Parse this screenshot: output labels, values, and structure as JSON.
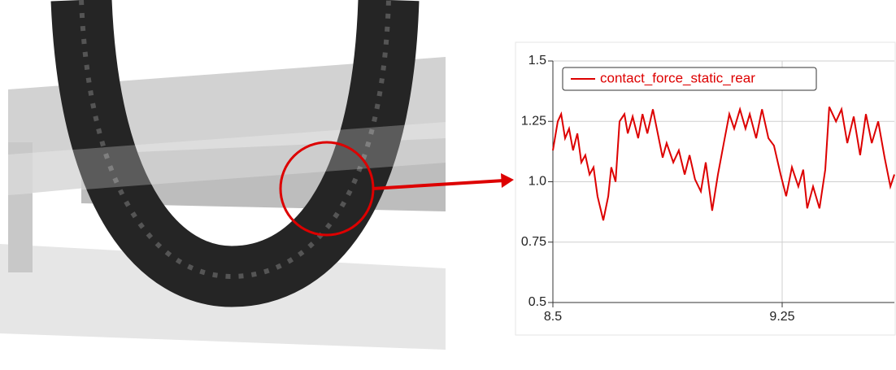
{
  "chart_data": {
    "type": "line",
    "x": [
      8.5,
      8.516,
      8.527,
      8.54,
      8.553,
      8.566,
      8.58,
      8.593,
      8.606,
      8.62,
      8.633,
      8.646,
      8.665,
      8.681,
      8.691,
      8.705,
      8.718,
      8.734,
      8.745,
      8.761,
      8.779,
      8.793,
      8.809,
      8.827,
      8.84,
      8.859,
      8.872,
      8.894,
      8.912,
      8.931,
      8.947,
      8.965,
      8.984,
      9.0,
      9.021,
      9.04,
      9.059,
      9.077,
      9.093,
      9.112,
      9.13,
      9.144,
      9.165,
      9.184,
      9.205,
      9.223,
      9.245,
      9.263,
      9.282,
      9.303,
      9.319,
      9.332,
      9.351,
      9.372,
      9.391,
      9.404,
      9.426,
      9.444,
      9.463,
      9.484,
      9.505,
      9.524,
      9.543,
      9.564,
      9.585,
      9.604,
      9.617
    ],
    "series": [
      {
        "name": "contact_force_static_rear",
        "color": "#dd0000",
        "values": [
          1.13,
          1.25,
          1.28,
          1.18,
          1.22,
          1.13,
          1.2,
          1.08,
          1.11,
          1.03,
          1.06,
          0.94,
          0.84,
          0.94,
          1.06,
          1.0,
          1.25,
          1.28,
          1.2,
          1.27,
          1.18,
          1.28,
          1.2,
          1.3,
          1.22,
          1.1,
          1.16,
          1.08,
          1.13,
          1.03,
          1.11,
          1.01,
          0.96,
          1.08,
          0.88,
          1.03,
          1.16,
          1.28,
          1.22,
          1.3,
          1.22,
          1.28,
          1.18,
          1.3,
          1.18,
          1.15,
          1.03,
          0.94,
          1.06,
          0.98,
          1.05,
          0.89,
          0.98,
          0.89,
          1.05,
          1.31,
          1.25,
          1.3,
          1.16,
          1.27,
          1.11,
          1.28,
          1.16,
          1.25,
          1.1,
          0.98,
          1.03
        ]
      }
    ],
    "xlim": [
      8.5,
      9.617
    ],
    "xticks": [
      8.5,
      9.25
    ],
    "ylim": [
      0.5,
      1.5
    ],
    "yticks": [
      0.5,
      0.75,
      {
        "value": 1,
        "label": "1.0"
      },
      1.25,
      1.5
    ],
    "grid": true,
    "legend": "upper left"
  }
}
